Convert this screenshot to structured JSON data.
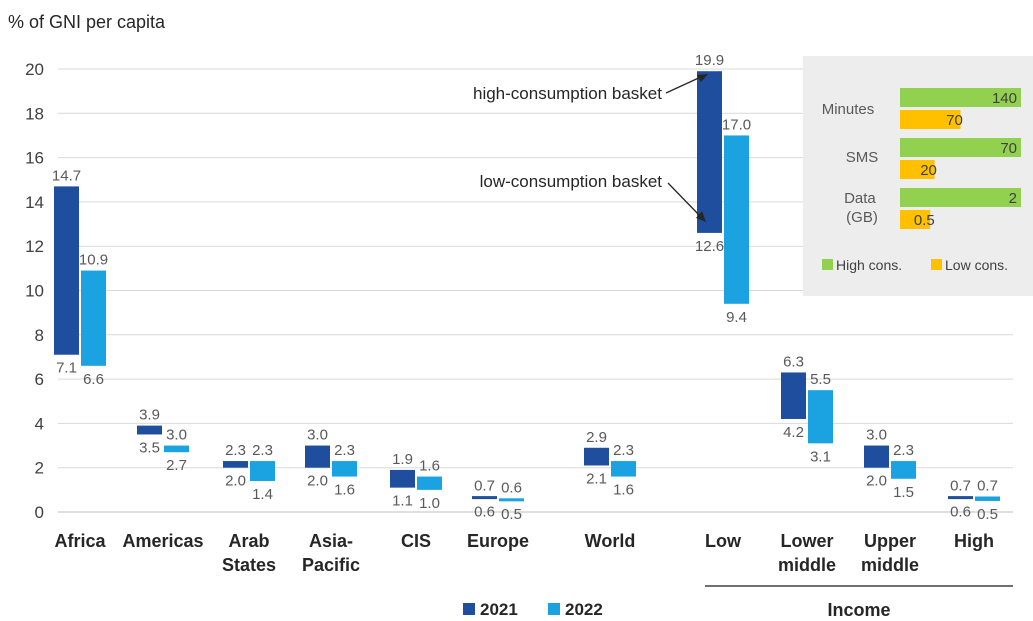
{
  "chart_data": {
    "type": "bar",
    "subtype": "floating-range",
    "ylabel": "% of GNI per capita",
    "ylim": [
      0,
      20
    ],
    "yticks": [
      0,
      2,
      4,
      6,
      8,
      10,
      12,
      14,
      16,
      18,
      20
    ],
    "grid": true,
    "categories": [
      {
        "label": "Africa"
      },
      {
        "label": "Americas"
      },
      {
        "label": "Arab States"
      },
      {
        "label": "Asia-Pacific"
      },
      {
        "label": "CIS"
      },
      {
        "label": "Europe"
      },
      {
        "label": "World"
      },
      {
        "label": "Low"
      },
      {
        "label": "Lower middle"
      },
      {
        "label": "Upper middle"
      },
      {
        "label": "High"
      }
    ],
    "group_label": "Income",
    "series": [
      {
        "name": "2021",
        "color": "#1f4e9e",
        "high": [
          14.7,
          3.9,
          2.3,
          3.0,
          1.9,
          0.7,
          2.9,
          19.9,
          6.3,
          3.0,
          0.7
        ],
        "low": [
          7.1,
          3.5,
          2.0,
          2.0,
          1.1,
          0.6,
          2.1,
          12.6,
          4.2,
          2.0,
          0.6
        ]
      },
      {
        "name": "2022",
        "color": "#1aa3e0",
        "high": [
          10.9,
          3.0,
          2.3,
          2.3,
          1.6,
          0.6,
          2.3,
          17.0,
          5.5,
          2.3,
          0.7
        ],
        "low": [
          6.6,
          2.7,
          1.4,
          1.6,
          1.0,
          0.5,
          1.6,
          9.4,
          3.1,
          1.5,
          0.5
        ]
      }
    ],
    "annotations": [
      "high-consumption basket",
      "low-consumption basket"
    ],
    "inset": {
      "type": "bar",
      "categories": [
        "Minutes",
        "SMS",
        "Data (GB)"
      ],
      "series": [
        {
          "name": "High cons.",
          "color": "#92d050",
          "values": [
            140,
            70,
            2
          ]
        },
        {
          "name": "Low cons.",
          "color": "#ffc000",
          "values": [
            70,
            20,
            0.5
          ]
        }
      ]
    }
  }
}
